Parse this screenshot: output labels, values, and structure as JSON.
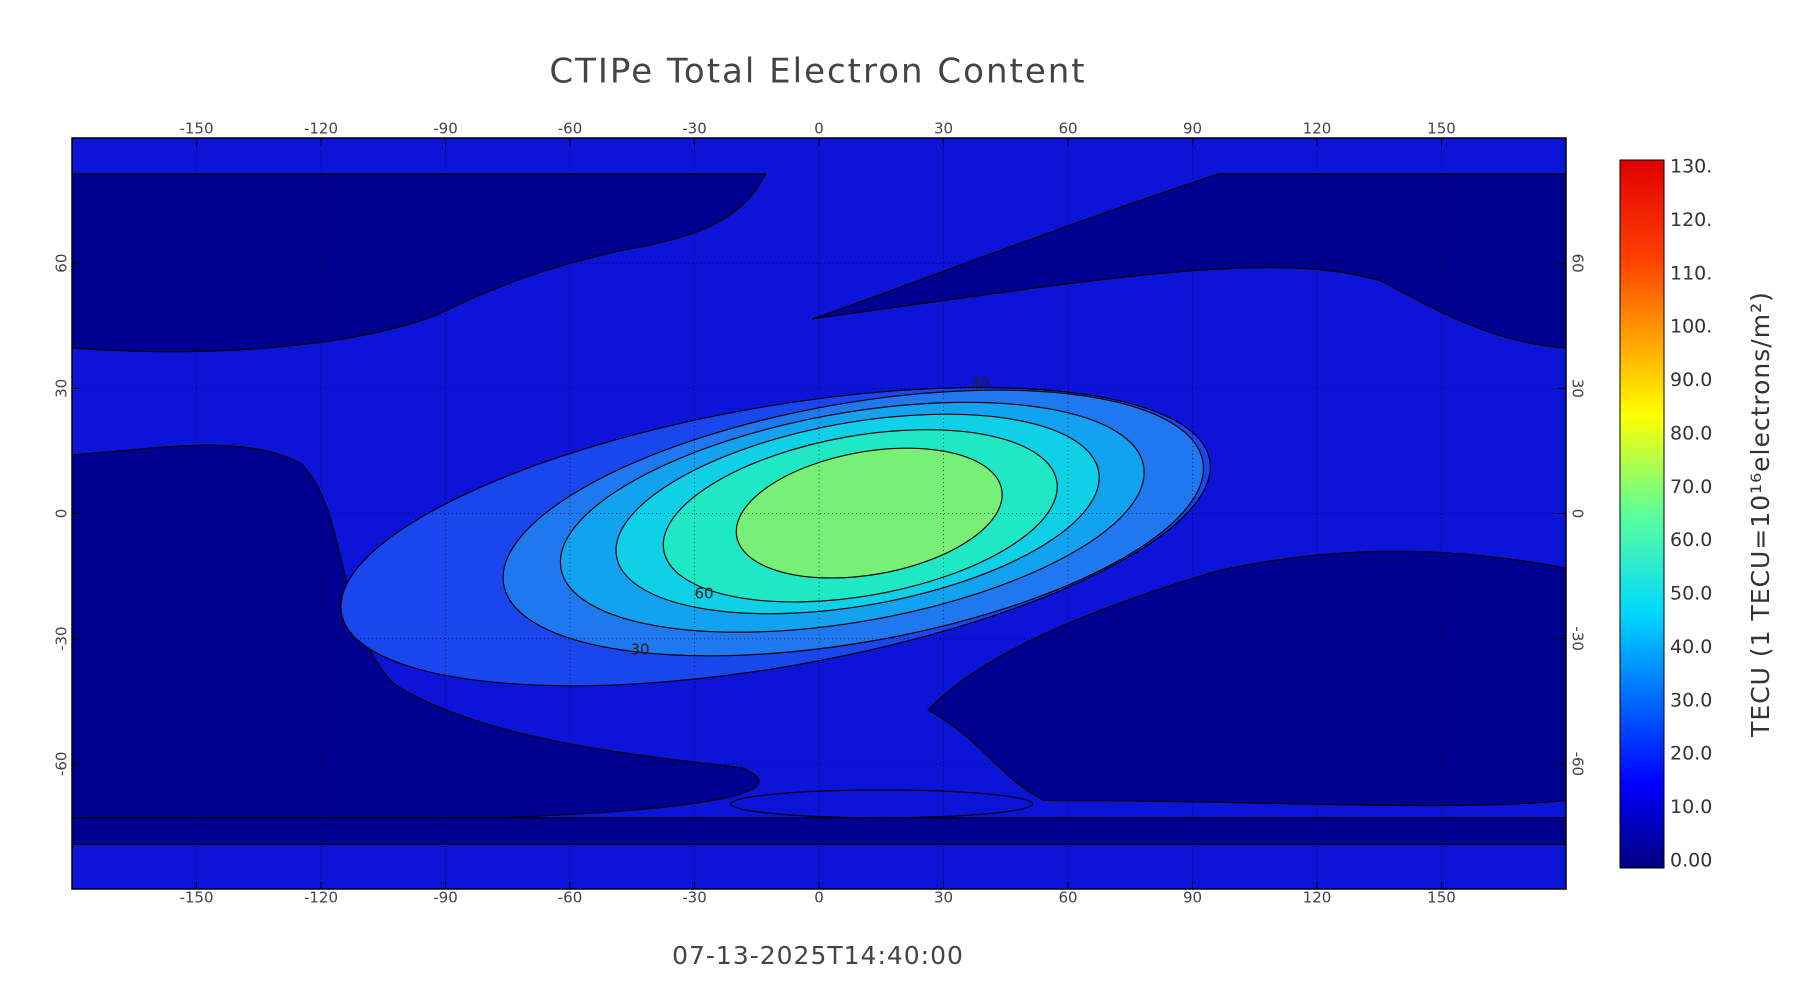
{
  "chart_data": {
    "type": "contour",
    "title": "CTIPe Total Electron Content",
    "timestamp": "07-13-2025T14:40:00",
    "xlim": [
      -180,
      180
    ],
    "ylim": [
      -90,
      90
    ],
    "xticks": [
      -150,
      -120,
      -90,
      -60,
      -30,
      0,
      30,
      60,
      90,
      120,
      150
    ],
    "yticks": [
      -60,
      -30,
      0,
      30,
      60
    ],
    "grid": true,
    "contour_labels": [
      30,
      60,
      30
    ],
    "colorbar": {
      "label": "TECU (1 TECU=10¹⁶electrons/m²)",
      "lim": [
        0,
        130
      ],
      "ticks": [
        {
          "value": 0,
          "label": "0.00"
        },
        {
          "value": 10,
          "label": "10.0"
        },
        {
          "value": 20,
          "label": "20.0"
        },
        {
          "value": 30,
          "label": "30.0"
        },
        {
          "value": 40,
          "label": "40.0"
        },
        {
          "value": 50,
          "label": "50.0"
        },
        {
          "value": 60,
          "label": "60.0"
        },
        {
          "value": 70,
          "label": "70.0"
        },
        {
          "value": 80,
          "label": "80.0"
        },
        {
          "value": 90,
          "label": "90.0"
        },
        {
          "value": 100,
          "label": "100."
        },
        {
          "value": 110,
          "label": "110."
        },
        {
          "value": 120,
          "label": "120."
        },
        {
          "value": 130,
          "label": "130."
        }
      ]
    }
  }
}
